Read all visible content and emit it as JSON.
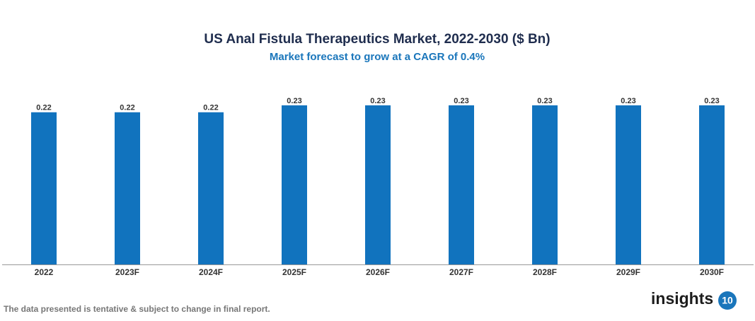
{
  "chart_data": {
    "type": "bar",
    "title": "US Anal Fistula Therapeutics Market, 2022-2030 ($ Bn)",
    "subtitle": "Market forecast to grow at a CAGR of 0.4%",
    "categories": [
      "2022",
      "2023F",
      "2024F",
      "2025F",
      "2026F",
      "2027F",
      "2028F",
      "2029F",
      "2030F"
    ],
    "values": [
      0.22,
      0.22,
      0.22,
      0.23,
      0.23,
      0.23,
      0.23,
      0.23,
      0.23
    ],
    "color": "#1173be"
  },
  "footnote": "The data presented is tentative & subject to change in final report.",
  "logo": {
    "text": "insights",
    "badge": "10"
  }
}
